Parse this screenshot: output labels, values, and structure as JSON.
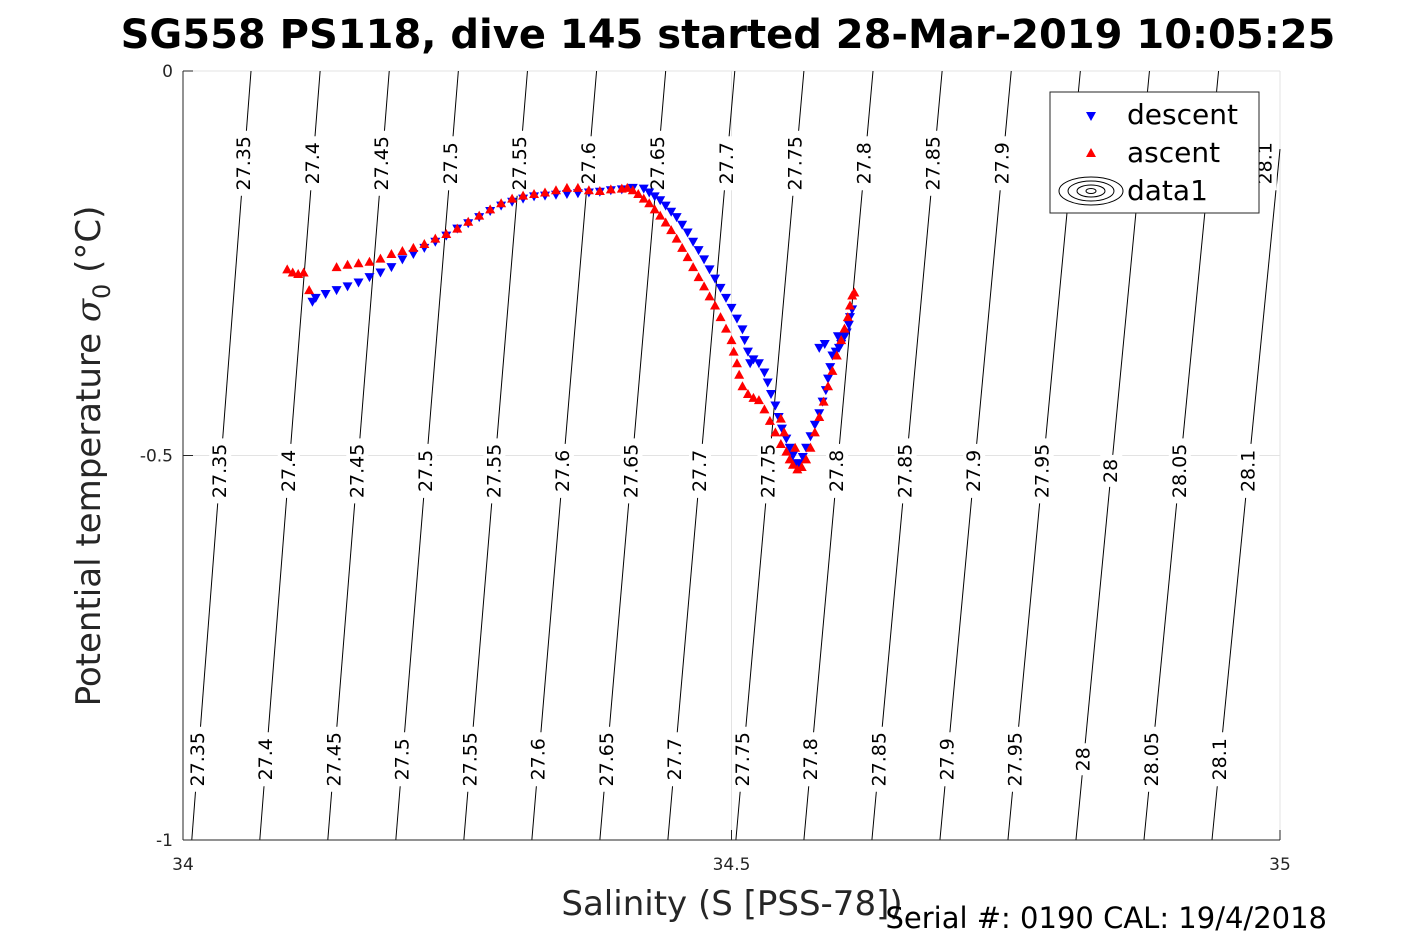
{
  "chart_data": {
    "type": "scatter",
    "title": "SG558 PS118, dive 145 started 28-Mar-2019 10:05:25",
    "xlabel": "Salinity (S [PSS-78])",
    "ylabel_main": "Potential temperature ",
    "ylabel_sigma": "σ",
    "ylabel_sub": "0",
    "ylabel_unit": " (°C)",
    "footer": "Serial #: 0190  CAL: 19/4/2018",
    "xlim": [
      34,
      35
    ],
    "ylim": [
      -1,
      0
    ],
    "xticks": [
      34,
      34.5,
      35
    ],
    "xtick_labels": [
      "34",
      "34.5",
      "35"
    ],
    "yticks": [
      -1,
      -0.5,
      0
    ],
    "ytick_labels": [
      "-1",
      "-0.5",
      "0"
    ],
    "grid": true,
    "legend_position": "top-right",
    "legend": [
      {
        "label": "descent",
        "marker": "triangle-down",
        "color": "#0000ff"
      },
      {
        "label": "ascent",
        "marker": "triangle-up",
        "color": "#ff0000"
      },
      {
        "label": "data1",
        "marker": "contour",
        "color": "#000000"
      }
    ],
    "density_contours": {
      "levels": [
        "27.35",
        "27.4",
        "27.45",
        "27.5",
        "27.55",
        "27.6",
        "27.65",
        "27.7",
        "27.75",
        "27.8",
        "27.85",
        "27.9",
        "27.95",
        "28",
        "28.05",
        "28.1"
      ],
      "s_at_bottom": [
        34.008,
        34.07,
        34.132,
        34.194,
        34.256,
        34.318,
        34.38,
        34.442,
        34.504,
        34.566,
        34.628,
        34.69,
        34.752,
        34.814,
        34.876,
        34.938
      ],
      "s_at_top": [
        34.062,
        34.125,
        34.188,
        34.251,
        34.314,
        34.377,
        34.44,
        34.503,
        34.566,
        34.629,
        34.692,
        34.755,
        34.818,
        34.881,
        34.944,
        35.007
      ],
      "label_rows": [
        {
          "theta": -0.895,
          "levels": [
            "27.35",
            "27.4",
            "27.45",
            "27.5",
            "27.55",
            "27.6",
            "27.65",
            "27.7",
            "27.75",
            "27.8",
            "27.85",
            "27.9",
            "27.95",
            "28",
            "28.05",
            "28.1"
          ]
        },
        {
          "theta": -0.52,
          "levels": [
            "27.35",
            "27.4",
            "27.45",
            "27.5",
            "27.55",
            "27.6",
            "27.65",
            "27.7",
            "27.75",
            "27.8",
            "27.85",
            "27.9",
            "27.95",
            "28",
            "28.05",
            "28.1"
          ]
        },
        {
          "theta": -0.12,
          "levels": [
            "27.35",
            "27.4",
            "27.45",
            "27.5",
            "27.55",
            "27.6",
            "27.65",
            "27.7",
            "27.75",
            "27.8",
            "27.85",
            "27.9"
          ]
        }
      ],
      "top_right_label": {
        "theta": -0.12,
        "s": 35.0,
        "level": "28.1"
      }
    },
    "series": [
      {
        "name": "descent",
        "color": "#0000ff",
        "marker": "triangle-down",
        "points": [
          [
            34.118,
            -0.3
          ],
          [
            34.121,
            -0.295
          ],
          [
            34.13,
            -0.29
          ],
          [
            34.14,
            -0.285
          ],
          [
            34.15,
            -0.28
          ],
          [
            34.16,
            -0.275
          ],
          [
            34.17,
            -0.268
          ],
          [
            34.18,
            -0.262
          ],
          [
            34.19,
            -0.255
          ],
          [
            34.2,
            -0.245
          ],
          [
            34.21,
            -0.238
          ],
          [
            34.22,
            -0.23
          ],
          [
            34.23,
            -0.222
          ],
          [
            34.24,
            -0.214
          ],
          [
            34.25,
            -0.205
          ],
          [
            34.26,
            -0.198
          ],
          [
            34.27,
            -0.19
          ],
          [
            34.28,
            -0.182
          ],
          [
            34.29,
            -0.175
          ],
          [
            34.3,
            -0.17
          ],
          [
            34.31,
            -0.166
          ],
          [
            34.32,
            -0.163
          ],
          [
            34.33,
            -0.162
          ],
          [
            34.34,
            -0.161
          ],
          [
            34.35,
            -0.16
          ],
          [
            34.36,
            -0.159
          ],
          [
            34.37,
            -0.158
          ],
          [
            34.38,
            -0.157
          ],
          [
            34.39,
            -0.155
          ],
          [
            34.4,
            -0.154
          ],
          [
            34.41,
            -0.152
          ],
          [
            34.42,
            -0.153
          ],
          [
            34.425,
            -0.158
          ],
          [
            34.43,
            -0.163
          ],
          [
            34.435,
            -0.168
          ],
          [
            34.44,
            -0.175
          ],
          [
            34.445,
            -0.183
          ],
          [
            34.45,
            -0.19
          ],
          [
            34.455,
            -0.2
          ],
          [
            34.46,
            -0.21
          ],
          [
            34.465,
            -0.222
          ],
          [
            34.47,
            -0.233
          ],
          [
            34.475,
            -0.245
          ],
          [
            34.48,
            -0.258
          ],
          [
            34.485,
            -0.27
          ],
          [
            34.49,
            -0.282
          ],
          [
            34.495,
            -0.295
          ],
          [
            34.5,
            -0.308
          ],
          [
            34.505,
            -0.322
          ],
          [
            34.51,
            -0.336
          ],
          [
            34.512,
            -0.35
          ],
          [
            34.515,
            -0.365
          ],
          [
            34.517,
            -0.38
          ],
          [
            34.52,
            -0.375
          ],
          [
            34.525,
            -0.38
          ],
          [
            34.53,
            -0.392
          ],
          [
            34.533,
            -0.405
          ],
          [
            34.536,
            -0.42
          ],
          [
            34.54,
            -0.435
          ],
          [
            34.543,
            -0.45
          ],
          [
            34.546,
            -0.465
          ],
          [
            34.55,
            -0.478
          ],
          [
            34.553,
            -0.49
          ],
          [
            34.556,
            -0.5
          ],
          [
            34.558,
            -0.51
          ],
          [
            34.56,
            -0.515
          ],
          [
            34.562,
            -0.51
          ],
          [
            34.565,
            -0.502
          ],
          [
            34.568,
            -0.49
          ],
          [
            34.572,
            -0.475
          ],
          [
            34.576,
            -0.46
          ],
          [
            34.58,
            -0.445
          ],
          [
            34.583,
            -0.43
          ],
          [
            34.586,
            -0.415
          ],
          [
            34.588,
            -0.4
          ],
          [
            34.59,
            -0.385
          ],
          [
            34.592,
            -0.37
          ],
          [
            34.595,
            -0.365
          ],
          [
            34.598,
            -0.36
          ],
          [
            34.6,
            -0.355
          ],
          [
            34.603,
            -0.345
          ],
          [
            34.605,
            -0.34
          ],
          [
            34.607,
            -0.33
          ],
          [
            34.608,
            -0.32
          ],
          [
            34.61,
            -0.31
          ],
          [
            34.58,
            -0.36
          ],
          [
            34.585,
            -0.355
          ],
          [
            34.597,
            -0.345
          ]
        ]
      },
      {
        "name": "ascent",
        "color": "#ff0000",
        "marker": "triangle-up",
        "points": [
          [
            34.095,
            -0.258
          ],
          [
            34.1,
            -0.262
          ],
          [
            34.105,
            -0.264
          ],
          [
            34.11,
            -0.262
          ],
          [
            34.115,
            -0.285
          ],
          [
            34.14,
            -0.255
          ],
          [
            34.15,
            -0.252
          ],
          [
            34.16,
            -0.25
          ],
          [
            34.17,
            -0.248
          ],
          [
            34.18,
            -0.244
          ],
          [
            34.19,
            -0.238
          ],
          [
            34.2,
            -0.234
          ],
          [
            34.21,
            -0.23
          ],
          [
            34.22,
            -0.225
          ],
          [
            34.23,
            -0.218
          ],
          [
            34.24,
            -0.212
          ],
          [
            34.25,
            -0.205
          ],
          [
            34.26,
            -0.196
          ],
          [
            34.27,
            -0.188
          ],
          [
            34.28,
            -0.18
          ],
          [
            34.29,
            -0.172
          ],
          [
            34.3,
            -0.166
          ],
          [
            34.31,
            -0.162
          ],
          [
            34.32,
            -0.16
          ],
          [
            34.33,
            -0.158
          ],
          [
            34.34,
            -0.155
          ],
          [
            34.35,
            -0.152
          ],
          [
            34.36,
            -0.152
          ],
          [
            34.37,
            -0.155
          ],
          [
            34.38,
            -0.156
          ],
          [
            34.39,
            -0.154
          ],
          [
            34.4,
            -0.153
          ],
          [
            34.405,
            -0.152
          ],
          [
            34.41,
            -0.155
          ],
          [
            34.415,
            -0.16
          ],
          [
            34.42,
            -0.166
          ],
          [
            34.425,
            -0.172
          ],
          [
            34.43,
            -0.18
          ],
          [
            34.435,
            -0.188
          ],
          [
            34.44,
            -0.197
          ],
          [
            34.445,
            -0.207
          ],
          [
            34.45,
            -0.218
          ],
          [
            34.455,
            -0.23
          ],
          [
            34.46,
            -0.242
          ],
          [
            34.465,
            -0.255
          ],
          [
            34.47,
            -0.268
          ],
          [
            34.475,
            -0.28
          ],
          [
            34.48,
            -0.293
          ],
          [
            34.485,
            -0.305
          ],
          [
            34.49,
            -0.32
          ],
          [
            34.495,
            -0.335
          ],
          [
            34.5,
            -0.35
          ],
          [
            34.502,
            -0.365
          ],
          [
            34.505,
            -0.38
          ],
          [
            34.507,
            -0.395
          ],
          [
            34.51,
            -0.41
          ],
          [
            34.515,
            -0.42
          ],
          [
            34.52,
            -0.425
          ],
          [
            34.525,
            -0.428
          ],
          [
            34.53,
            -0.44
          ],
          [
            34.535,
            -0.455
          ],
          [
            34.54,
            -0.47
          ],
          [
            34.545,
            -0.485
          ],
          [
            34.55,
            -0.495
          ],
          [
            34.553,
            -0.505
          ],
          [
            34.556,
            -0.512
          ],
          [
            34.56,
            -0.518
          ],
          [
            34.564,
            -0.515
          ],
          [
            34.568,
            -0.505
          ],
          [
            34.572,
            -0.49
          ],
          [
            34.576,
            -0.47
          ],
          [
            34.58,
            -0.45
          ],
          [
            34.584,
            -0.43
          ],
          [
            34.588,
            -0.41
          ],
          [
            34.592,
            -0.39
          ],
          [
            34.596,
            -0.37
          ],
          [
            34.6,
            -0.35
          ],
          [
            34.603,
            -0.335
          ],
          [
            34.606,
            -0.32
          ],
          [
            34.608,
            -0.305
          ],
          [
            34.61,
            -0.292
          ],
          [
            34.612,
            -0.288
          ],
          [
            34.548,
            -0.47
          ],
          [
            34.545,
            -0.452
          ],
          [
            34.558,
            -0.49
          ]
        ]
      }
    ]
  }
}
